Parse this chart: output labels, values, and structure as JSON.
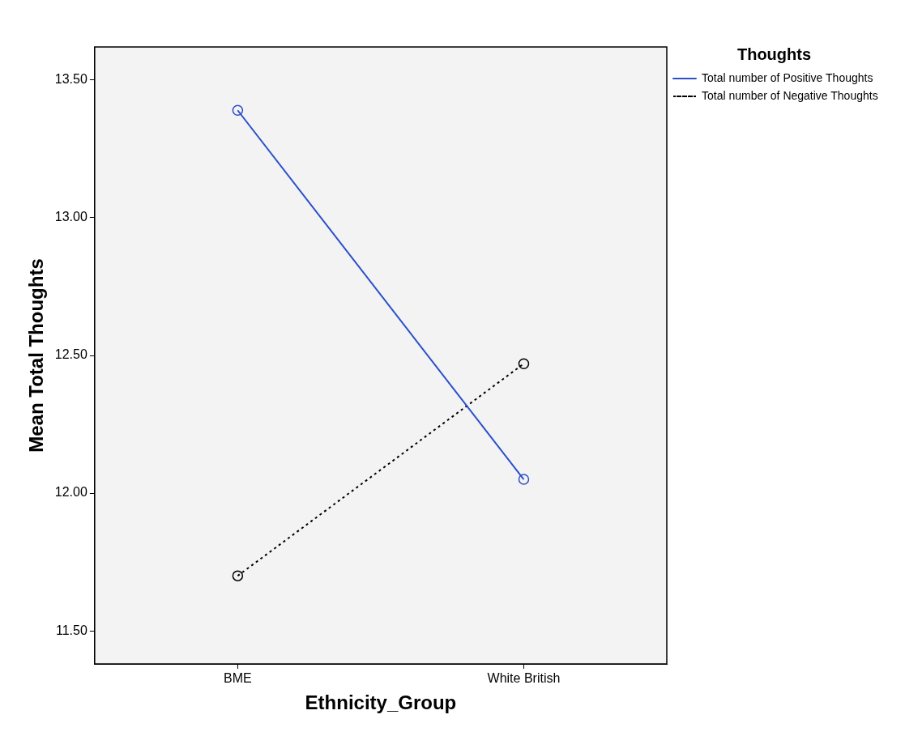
{
  "chart_data": {
    "type": "line",
    "xlabel": "Ethnicity_Group",
    "ylabel": "Mean Total Thoughts",
    "legend_title": "Thoughts",
    "categories": [
      "BME",
      "White British"
    ],
    "series": [
      {
        "name": "Total number of Positive Thoughts",
        "color": "#2b4fc9",
        "values": [
          13.39,
          12.05
        ],
        "line_style": "solid"
      },
      {
        "name": "Total number of Negative Thoughts",
        "color": "#000000",
        "values": [
          11.7,
          12.47
        ],
        "line_style": "dotted"
      }
    ],
    "ylim": [
      11.38,
      13.62
    ],
    "yticks": [
      {
        "value": 11.5,
        "label": "11.50"
      },
      {
        "value": 12,
        "label": "12.00"
      },
      {
        "value": 12.5,
        "label": "12.50"
      },
      {
        "value": 13,
        "label": "13.00"
      },
      {
        "value": 13.5,
        "label": "13.50"
      }
    ],
    "grid": false,
    "legend": "top right",
    "marker": "circle"
  }
}
